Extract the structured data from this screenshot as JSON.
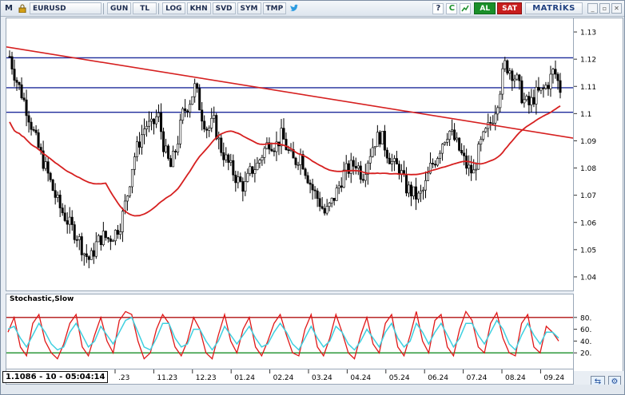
{
  "toolbar": {
    "menu_label": "M",
    "symbol": "EURUSD",
    "buttons": [
      "GUN",
      "TL",
      "LOG",
      "KHN",
      "SVD",
      "SYM",
      "TMP"
    ],
    "al_label": "AL",
    "sat_label": "SAT",
    "brand": "MATRİKS",
    "icons": [
      "menu-icon",
      "lock-icon",
      "twitter-icon",
      "help-icon",
      "refresh-icon",
      "chart-icon"
    ],
    "window_controls": [
      "minimize",
      "restore",
      "close"
    ],
    "colors": {
      "al": "#1a8f2a",
      "sat": "#c81e1e"
    }
  },
  "readout": "1.1086 - 10 - 05:04:14",
  "stochastic": {
    "title": "Stochastic,Slow"
  },
  "chart_data": [
    {
      "type": "candlestick",
      "symbol": "EURUSD",
      "y_ticks": [
        "1.13",
        "1.12",
        "1.11",
        "1.1",
        "1.09",
        "1.08",
        "1.07",
        "1.06",
        "1.05",
        "1.04"
      ],
      "ylim": [
        1.035,
        1.135
      ],
      "x_ticks": [
        ".23",
        "11.23",
        "12.23",
        "01.24",
        "02.24",
        "03.24",
        "04.24",
        "05.24",
        "06.24",
        "07.24",
        "08.24",
        "09.24"
      ],
      "horizontal_levels": [
        1.1205,
        1.1095,
        1.1005
      ],
      "trendline": {
        "from": [
          0,
          1.1245
        ],
        "to": [
          1,
          1.091
        ],
        "color": "#d62020"
      },
      "moving_average_color": "#d62020",
      "price_path": [
        1.121,
        1.113,
        1.107,
        1.1,
        1.092,
        1.085,
        1.079,
        1.072,
        1.066,
        1.062,
        1.058,
        1.055,
        1.049,
        1.046,
        1.052,
        1.055,
        1.054,
        1.056,
        1.06,
        1.07,
        1.083,
        1.09,
        1.096,
        1.095,
        1.1,
        1.087,
        1.08,
        1.088,
        1.1,
        1.104,
        1.11,
        1.1,
        1.094,
        1.097,
        1.088,
        1.083,
        1.079,
        1.075,
        1.073,
        1.079,
        1.081,
        1.086,
        1.09,
        1.088,
        1.092,
        1.086,
        1.082,
        1.085,
        1.078,
        1.072,
        1.068,
        1.063,
        1.067,
        1.072,
        1.078,
        1.08,
        1.082,
        1.077,
        1.084,
        1.09,
        1.092,
        1.086,
        1.081,
        1.08,
        1.073,
        1.071,
        1.069,
        1.072,
        1.08,
        1.084,
        1.09,
        1.094,
        1.09,
        1.085,
        1.08,
        1.078,
        1.088,
        1.093,
        1.098,
        1.106,
        1.118,
        1.116,
        1.112,
        1.105,
        1.103,
        1.107,
        1.108,
        1.111,
        1.116,
        1.109
      ]
    },
    {
      "type": "line",
      "name": "Stochastic,Slow",
      "y_ticks": [
        "80.",
        "60.",
        "40.",
        "20."
      ],
      "ylim": [
        0,
        100
      ],
      "levels": [
        {
          "value": 80,
          "color": "#b01010"
        },
        {
          "value": 20,
          "color": "#1a8f2a"
        }
      ],
      "series": [
        {
          "color": "#e01818",
          "values": [
            55,
            80,
            30,
            15,
            70,
            85,
            40,
            20,
            10,
            35,
            70,
            85,
            30,
            15,
            50,
            80,
            40,
            20,
            75,
            90,
            85,
            40,
            10,
            20,
            60,
            85,
            70,
            30,
            15,
            40,
            80,
            60,
            20,
            10,
            50,
            85,
            40,
            20,
            60,
            80,
            30,
            15,
            40,
            70,
            85,
            50,
            20,
            15,
            60,
            85,
            30,
            15,
            45,
            85,
            55,
            20,
            10,
            50,
            80,
            35,
            20,
            70,
            85,
            30,
            15,
            50,
            90,
            40,
            20,
            75,
            85,
            30,
            15,
            60,
            90,
            75,
            30,
            20,
            70,
            88,
            45,
            20,
            15,
            70,
            85,
            30,
            20,
            65,
            55,
            40
          ]
        },
        {
          "color": "#3fd0e0",
          "values": [
            60,
            65,
            45,
            30,
            50,
            70,
            55,
            35,
            25,
            30,
            55,
            70,
            50,
            30,
            40,
            65,
            50,
            35,
            55,
            75,
            80,
            55,
            30,
            25,
            45,
            70,
            70,
            45,
            30,
            35,
            60,
            60,
            40,
            25,
            40,
            65,
            50,
            35,
            50,
            65,
            45,
            30,
            35,
            55,
            70,
            55,
            35,
            25,
            45,
            65,
            45,
            30,
            40,
            65,
            55,
            35,
            25,
            40,
            60,
            45,
            30,
            55,
            70,
            45,
            30,
            40,
            70,
            55,
            35,
            55,
            70,
            50,
            30,
            45,
            70,
            70,
            50,
            35,
            55,
            75,
            60,
            35,
            25,
            50,
            70,
            50,
            35,
            55,
            55,
            45
          ]
        }
      ]
    }
  ]
}
